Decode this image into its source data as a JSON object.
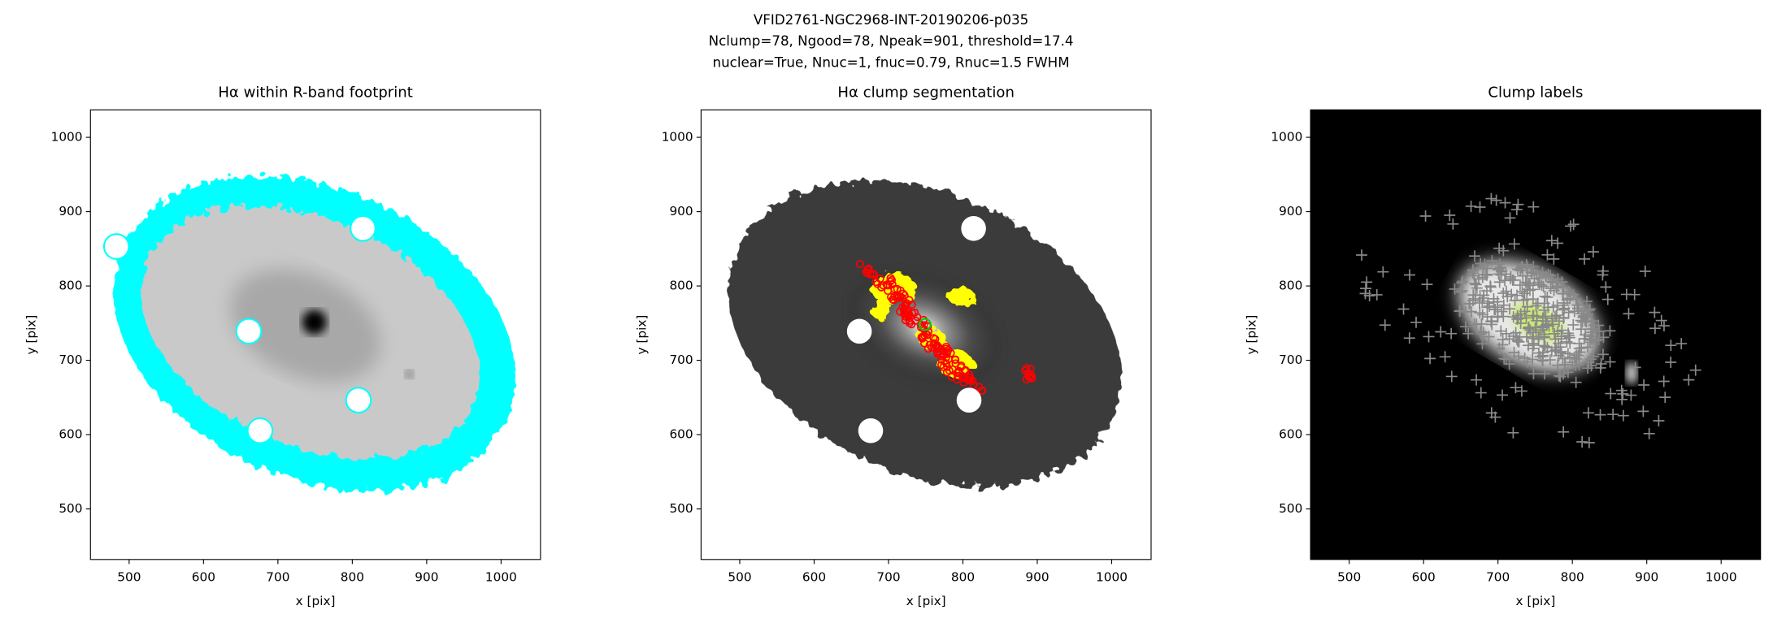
{
  "title": [
    "VFID2761-NGC2968-INT-20190206-p035",
    "Nclump=78, Ngood=78, Npeak=901, threshold=17.4",
    "nuclear=True, Nnuc=1, fnuc=0.79, Rnuc=1.5 FWHM"
  ],
  "chart_data": [
    {
      "type": "image",
      "title": "Hα within R-band footprint",
      "xlabel": "x [pix]",
      "ylabel": "y [pix]",
      "xlim": [
        448,
        1053
      ],
      "ylim": [
        432,
        1037
      ],
      "xticks": [
        500,
        600,
        700,
        800,
        900,
        1000
      ],
      "yticks": [
        500,
        600,
        700,
        800,
        900,
        1000
      ]
    },
    {
      "type": "image",
      "title": "Hα clump segmentation",
      "xlabel": "x [pix]",
      "ylabel": "y [pix]",
      "xlim": [
        448,
        1053
      ],
      "ylim": [
        432,
        1037
      ],
      "xticks": [
        500,
        600,
        700,
        800,
        900,
        1000
      ],
      "yticks": [
        500,
        600,
        700,
        800,
        900,
        1000
      ]
    },
    {
      "type": "image",
      "title": "Clump labels",
      "xlabel": "x [pix]",
      "ylabel": "y [pix]",
      "xlim": [
        448,
        1053
      ],
      "ylim": [
        432,
        1037
      ],
      "xticks": [
        500,
        600,
        700,
        800,
        900,
        1000
      ],
      "yticks": [
        500,
        600,
        700,
        800,
        900,
        1000
      ]
    }
  ]
}
